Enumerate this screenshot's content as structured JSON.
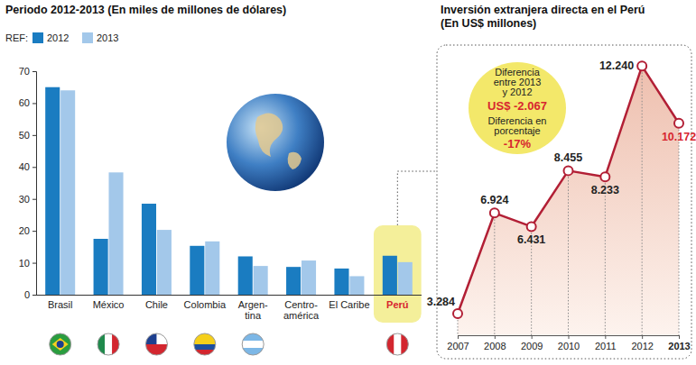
{
  "chart_data": [
    {
      "type": "bar",
      "title": "Periodo 2012-2013 (En miles de millones de dólares)",
      "legend_title": "REF:",
      "categories": [
        "Brasil",
        "México",
        "Chile",
        "Colombia",
        "Argen-\ntina",
        "Centro-\namérica",
        "El Caribe",
        "Perú"
      ],
      "series": [
        {
          "name": "2012",
          "color": "#1a7cc1",
          "values": [
            65,
            17.5,
            28.5,
            15.3,
            12,
            8.7,
            8.2,
            12.2
          ]
        },
        {
          "name": "2013",
          "color": "#a3c8ea",
          "values": [
            64,
            38.3,
            20.3,
            16.7,
            9,
            10.7,
            5.8,
            10.2
          ]
        }
      ],
      "ylim": [
        0,
        70
      ],
      "yticks": [
        0,
        10,
        20,
        30,
        40,
        50,
        60,
        70
      ],
      "grid": false,
      "legend": "top-left"
    },
    {
      "type": "line",
      "title": "Inversión extranjera directa en el Perú",
      "subtitle": "(En US$ millones)",
      "x": [
        2007,
        2008,
        2009,
        2010,
        2011,
        2012,
        2013
      ],
      "values": [
        3284,
        6924,
        6431,
        8455,
        8233,
        12240,
        10172
      ],
      "value_labels": [
        "3.284",
        "6.924",
        "6.431",
        "8.455",
        "8.233",
        "12.240",
        "10.172"
      ],
      "color": "#b21f35",
      "marker": "circle",
      "data_labels": true,
      "tick_labels": "x",
      "xlim": [
        2007,
        2013
      ],
      "xticks": [
        2007,
        2008,
        2009,
        2010,
        2011,
        2012,
        2013
      ],
      "ylim": [
        2500,
        13000
      ],
      "annotations": [
        {
          "text": "Diferencia\nentre 2013\ny 2012"
        },
        {
          "text": "US$ -2.067"
        },
        {
          "text": "Diferencia en\nporcentaje"
        },
        {
          "text": "-17%"
        }
      ]
    }
  ]
}
